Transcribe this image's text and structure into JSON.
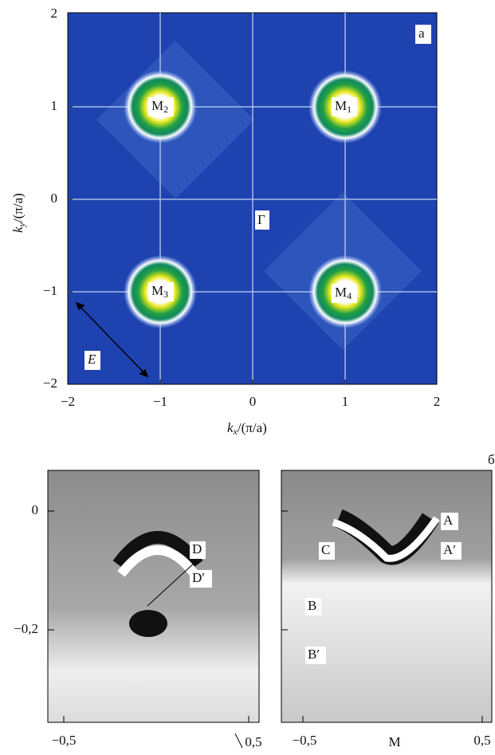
{
  "panel_a": {
    "label": "а",
    "gamma": "Γ",
    "arrow_label": "E",
    "x_axis": {
      "label": {
        "var": "k",
        "sub": "x",
        "rest": "/(π/a)"
      },
      "ticks": [
        "−2",
        "−1",
        "0",
        "1",
        "2"
      ]
    },
    "y_axis": {
      "label": {
        "var": "k",
        "sub": "y",
        "rest": "/(π/a)"
      },
      "ticks": [
        "2",
        "1",
        "0",
        "−1",
        "−2"
      ]
    },
    "points": [
      {
        "label": "M",
        "sub": "1"
      },
      {
        "label": "M",
        "sub": "2"
      },
      {
        "label": "M",
        "sub": "3"
      },
      {
        "label": "M",
        "sub": "4"
      }
    ]
  },
  "panel_b": {
    "label": "б",
    "y_ticks": [
      "0",
      "−0,2"
    ],
    "left": {
      "x_ticks": [
        "−0,5",
        "0,5"
      ],
      "labels": [
        "D",
        "D′"
      ]
    },
    "right": {
      "x_ticks": [
        "−0,5",
        "M",
        "0,5"
      ],
      "labels": [
        "A",
        "C",
        "A′",
        "B",
        "B′"
      ]
    }
  }
}
